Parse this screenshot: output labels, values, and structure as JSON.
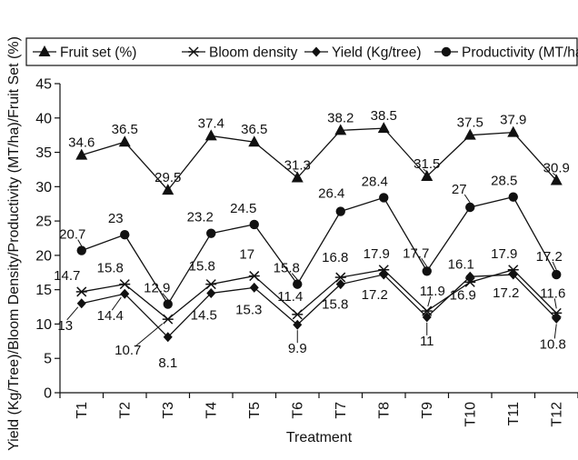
{
  "chart_data": {
    "type": "line",
    "title": "",
    "xlabel": "Treatment",
    "ylabel": "Yield (Kg/Tree)/Bloom Density/Productivity (MT/ha)/Fruit Set (%)",
    "categories": [
      "T1",
      "T2",
      "T3",
      "T4",
      "T5",
      "T6",
      "T7",
      "T8",
      "T9",
      "T10",
      "T11",
      "T12"
    ],
    "ylim": [
      0,
      45
    ],
    "yticks": [
      "0",
      "5",
      "10",
      "15",
      "20",
      "25",
      "30",
      "35",
      "40",
      "45"
    ],
    "grid": false,
    "legend_position": "top",
    "series": [
      {
        "name": "Fruit set (%)",
        "marker": "triangle",
        "values": [
          34.6,
          36.5,
          29.5,
          37.4,
          36.5,
          31.3,
          38.2,
          38.5,
          31.5,
          37.5,
          37.9,
          30.9
        ],
        "labels": [
          "34.6",
          "36.5",
          "29.5",
          "37.4",
          "36.5",
          "31.3",
          "38.2",
          "38.5",
          "31.5",
          "37.5",
          "37.9",
          "30.9"
        ]
      },
      {
        "name": "Bloom density",
        "marker": "star",
        "values": [
          14.7,
          15.8,
          10.7,
          15.8,
          17,
          11.4,
          16.8,
          17.9,
          11.9,
          16.1,
          17.9,
          11.6
        ],
        "labels": [
          "14.7",
          "15.8",
          "10.7",
          "15.8",
          "17",
          "11.4",
          "16.8",
          "17.9",
          "11.9",
          "16.1",
          "17.9",
          "11.6"
        ]
      },
      {
        "name": "Yield (Kg/tree)",
        "marker": "diamond",
        "values": [
          13,
          14.4,
          8.1,
          14.5,
          15.3,
          9.9,
          15.8,
          17.2,
          11,
          16.9,
          17.2,
          10.8
        ],
        "labels": [
          "13",
          "14.4",
          "8.1",
          "14.5",
          "15.3",
          "9.9",
          "15.8",
          "17.2",
          "11",
          "16.9",
          "17.2",
          "10.8"
        ]
      },
      {
        "name": "Productivity (MT/ha)",
        "marker": "circle",
        "values": [
          20.7,
          23,
          12.9,
          23.2,
          24.5,
          15.8,
          26.4,
          28.4,
          17.7,
          27,
          28.5,
          17.2
        ],
        "labels": [
          "20.7",
          "23",
          "12.9",
          "23.2",
          "24.5",
          "15.8",
          "26.4",
          "28.4",
          "17.7",
          "27",
          "28.5",
          "17.2"
        ]
      }
    ]
  }
}
